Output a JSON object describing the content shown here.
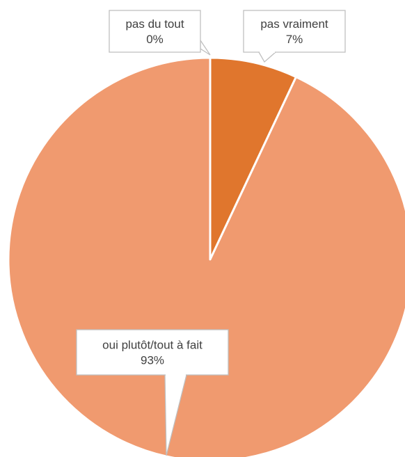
{
  "chart_data": {
    "type": "pie",
    "title": "",
    "categories": [
      "pas du tout",
      "pas vraiment",
      "oui plutôt/tout à fait"
    ],
    "values": [
      0,
      7,
      93
    ],
    "value_unit": "%",
    "data_labels": [
      {
        "category": "pas du tout",
        "value_text": "0%"
      },
      {
        "category": "pas vraiment",
        "value_text": "7%"
      },
      {
        "category": "oui plutôt/tout à fait",
        "value_text": "93%"
      }
    ],
    "colors": [
      "#C55A11",
      "#E0762D",
      "#F09A6F"
    ],
    "start_angle": "12 o'clock",
    "direction": "clockwise",
    "legend": "none"
  }
}
